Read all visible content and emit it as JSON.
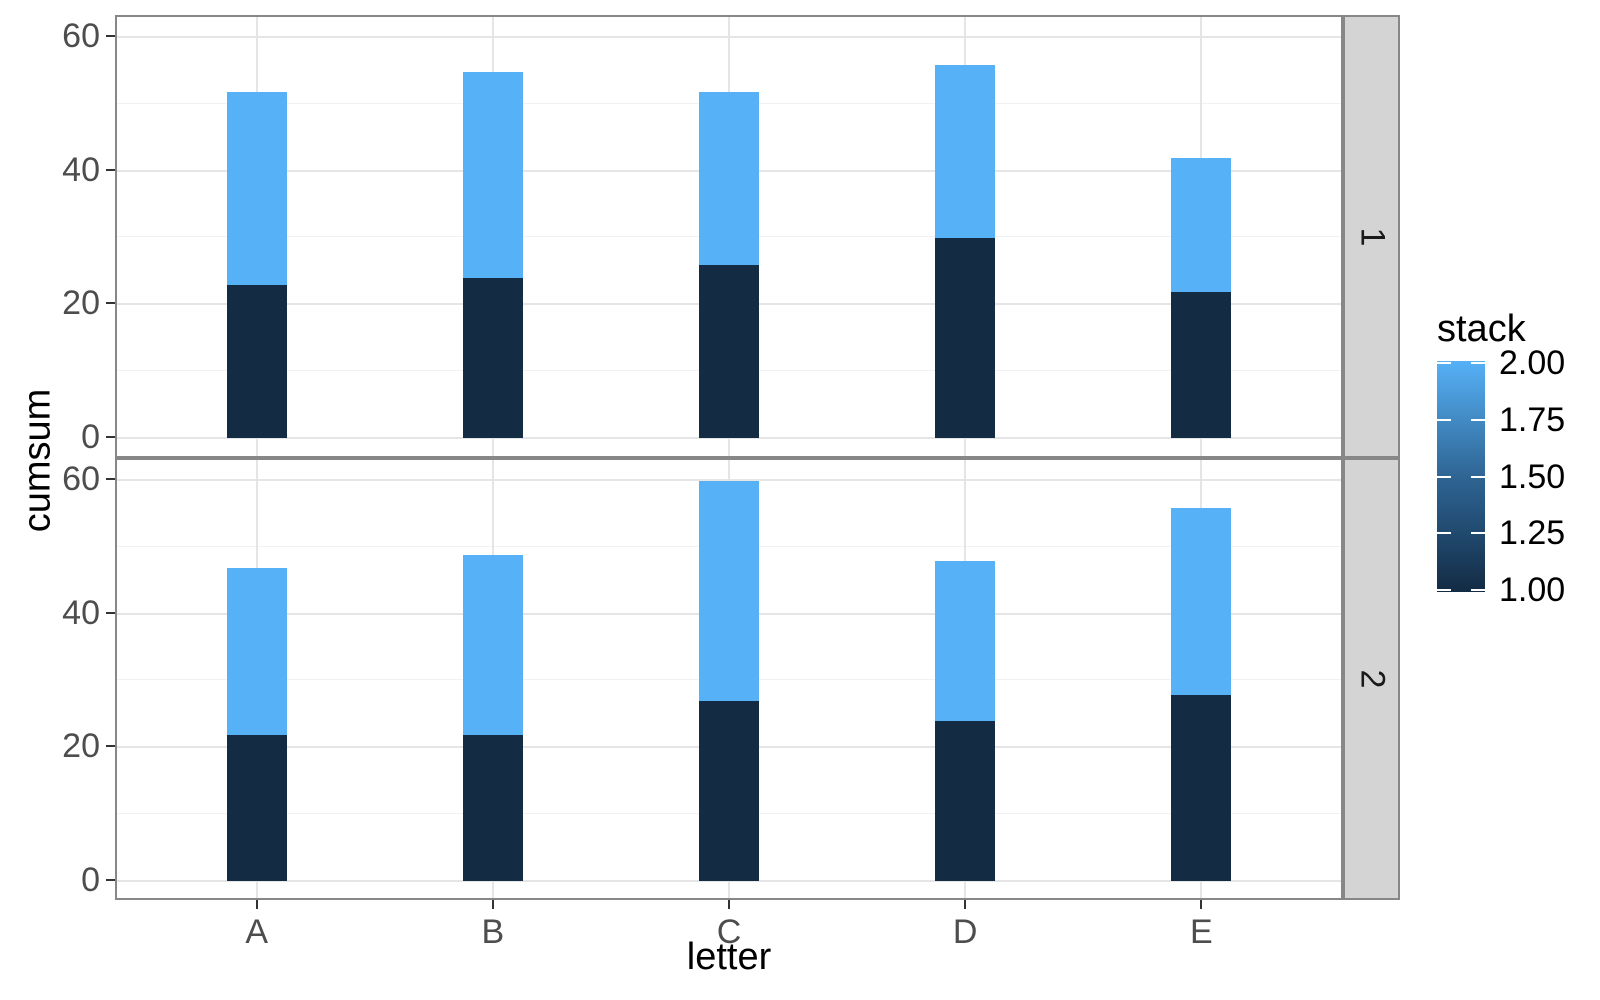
{
  "chart_data": {
    "type": "bar",
    "stacked": true,
    "title": "",
    "xlabel": "letter",
    "ylabel": "cumsum",
    "categories": [
      "A",
      "B",
      "C",
      "D",
      "E"
    ],
    "yticks": {
      "values": [
        0,
        20,
        40,
        60
      ],
      "labels": [
        "0",
        "20",
        "40",
        "60"
      ]
    },
    "yminor": [
      10,
      30,
      50
    ],
    "ylim": [
      -3,
      63
    ],
    "grid": "on",
    "facets": [
      {
        "strip_label": "1",
        "series": [
          {
            "stack": 1,
            "color": "#132b43",
            "values": [
              23,
              24,
              26,
              30,
              22
            ]
          },
          {
            "stack": 2,
            "color": "#56b1f7",
            "values": [
              29,
              31,
              26,
              26,
              20
            ]
          }
        ],
        "totals": [
          52,
          55,
          52,
          56,
          42
        ]
      },
      {
        "strip_label": "2",
        "series": [
          {
            "stack": 1,
            "color": "#132b43",
            "values": [
              22,
              22,
              27,
              24,
              28
            ]
          },
          {
            "stack": 2,
            "color": "#56b1f7",
            "values": [
              25,
              27,
              33,
              24,
              28
            ]
          }
        ],
        "totals": [
          47,
          49,
          60,
          48,
          56
        ]
      }
    ],
    "legend": {
      "title": "stack",
      "style": "colorbar",
      "position": "right",
      "ticks": [
        "2.00",
        "1.75",
        "1.50",
        "1.25",
        "1.00"
      ],
      "low_value": "1.00",
      "high_value": "2.00",
      "low_color": "#132b43",
      "high_color": "#56b1f7"
    },
    "colors": {
      "panel_border": "#878787",
      "strip_fill": "#d4d4d4",
      "grid_major": "#e5e5e5",
      "grid_minor": "#f2f2f2",
      "axis_text": "#4d4d4d"
    }
  }
}
